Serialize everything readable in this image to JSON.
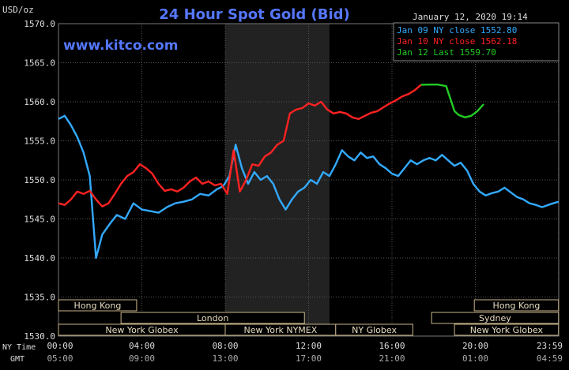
{
  "chart_data": {
    "type": "line",
    "title": "24 Hour Spot Gold (Bid)",
    "ylabel": "USD/oz",
    "timestamp": "January 12, 2020 19:14",
    "watermark": "www.kitco.com",
    "ylim": [
      1530,
      1570
    ],
    "y_ticks": [
      "1570.0",
      "1565.0",
      "1560.0",
      "1555.0",
      "1550.0",
      "1545.0",
      "1540.0",
      "1535.0",
      "1530.0"
    ],
    "grid": true,
    "legend_position": "top-right",
    "x_range": [
      0,
      24
    ],
    "x_ticks_ny": [
      "00:00",
      "04:00",
      "08:00",
      "12:00",
      "16:00",
      "20:00",
      "23:59"
    ],
    "x_ticks_gmt": [
      "05:00",
      "09:00",
      "13:00",
      "17:00",
      "21:00",
      "01:00",
      "04:59"
    ],
    "x_axis_label_ny": "NY Time",
    "x_axis_label_gmt": "GMT",
    "shaded_region_hours": [
      8.0,
      13.0
    ],
    "series": [
      {
        "name": "Jan 09 NY close 1552.80",
        "color": "#33aaff",
        "x": [
          0,
          0.3,
          0.6,
          0.9,
          1.2,
          1.5,
          1.8,
          2.1,
          2.5,
          2.8,
          3.2,
          3.6,
          4.0,
          4.4,
          4.8,
          5.2,
          5.6,
          6.0,
          6.4,
          6.8,
          7.2,
          7.6,
          7.9,
          8.2,
          8.5,
          8.8,
          9.1,
          9.4,
          9.7,
          10.0,
          10.3,
          10.6,
          10.9,
          11.2,
          11.5,
          11.8,
          12.1,
          12.4,
          12.7,
          13.0,
          13.3,
          13.6,
          13.9,
          14.2,
          14.5,
          14.8,
          15.1,
          15.4,
          15.7,
          16.0,
          16.3,
          16.6,
          16.9,
          17.2,
          17.5,
          17.8,
          18.1,
          18.4,
          18.7,
          19.0,
          19.3,
          19.6,
          19.9,
          20.2,
          20.5,
          20.8,
          21.1,
          21.4,
          21.7,
          22.0,
          22.3,
          22.6,
          22.9,
          23.2,
          23.5,
          23.99
        ],
        "values": [
          1557.8,
          1558.2,
          1557.0,
          1555.5,
          1553.5,
          1550.5,
          1540.0,
          1543.0,
          1544.5,
          1545.5,
          1545.0,
          1547.0,
          1546.2,
          1546.0,
          1545.8,
          1546.5,
          1547.0,
          1547.2,
          1547.5,
          1548.2,
          1548.0,
          1548.8,
          1549.2,
          1550.5,
          1554.5,
          1551.5,
          1549.5,
          1551.0,
          1550.0,
          1550.5,
          1549.5,
          1547.5,
          1546.2,
          1547.5,
          1548.5,
          1549.0,
          1550.0,
          1549.5,
          1551.0,
          1550.5,
          1552.0,
          1553.8,
          1553.0,
          1552.5,
          1553.5,
          1552.8,
          1553.0,
          1552.0,
          1551.5,
          1550.8,
          1550.5,
          1551.5,
          1552.5,
          1552.0,
          1552.5,
          1552.8,
          1552.5,
          1553.2,
          1552.5,
          1551.8,
          1552.2,
          1551.2,
          1549.5,
          1548.5,
          1548.0,
          1548.3,
          1548.5,
          1549.0,
          1548.4,
          1547.8,
          1547.5,
          1547.0,
          1546.8,
          1546.5,
          1546.8,
          1547.2
        ]
      },
      {
        "name": "Jan 10 NY close 1562.18",
        "color": "#ff2222",
        "x": [
          0,
          0.3,
          0.6,
          0.9,
          1.2,
          1.5,
          1.8,
          2.1,
          2.4,
          2.7,
          3.0,
          3.3,
          3.6,
          3.9,
          4.2,
          4.5,
          4.8,
          5.1,
          5.4,
          5.7,
          6.0,
          6.3,
          6.6,
          6.9,
          7.2,
          7.5,
          7.8,
          8.1,
          8.4,
          8.7,
          9.0,
          9.3,
          9.6,
          9.9,
          10.2,
          10.5,
          10.8,
          11.1,
          11.4,
          11.7,
          12.0,
          12.3,
          12.6,
          12.9,
          13.2,
          13.5,
          13.8,
          14.1,
          14.4,
          14.7,
          15.0,
          15.3,
          15.6,
          15.9,
          16.2,
          16.5,
          16.8,
          17.1,
          17.4
        ],
        "values": [
          1547.0,
          1546.8,
          1547.5,
          1548.5,
          1548.2,
          1548.6,
          1547.5,
          1546.6,
          1547.0,
          1548.2,
          1549.5,
          1550.5,
          1551.0,
          1552.0,
          1551.5,
          1550.8,
          1549.5,
          1548.6,
          1548.8,
          1548.5,
          1549.0,
          1549.8,
          1550.3,
          1549.5,
          1549.8,
          1549.3,
          1549.5,
          1548.2,
          1553.8,
          1548.5,
          1550.0,
          1552.0,
          1551.8,
          1553.0,
          1553.5,
          1554.5,
          1555.0,
          1558.5,
          1559.0,
          1559.2,
          1559.8,
          1559.5,
          1560.0,
          1559.0,
          1558.5,
          1558.7,
          1558.5,
          1558.0,
          1557.8,
          1558.2,
          1558.6,
          1558.8,
          1559.3,
          1559.8,
          1560.2,
          1560.7,
          1561.0,
          1561.5,
          1562.18
        ]
      },
      {
        "name": "Jan 12 Last 1559.70",
        "color": "#22cc22",
        "x": [
          17.4,
          17.8,
          18.2,
          18.6,
          19.0,
          19.2,
          19.5,
          19.8,
          20.1,
          20.4
        ],
        "values": [
          1562.18,
          1562.2,
          1562.2,
          1562.0,
          1558.8,
          1558.3,
          1558.0,
          1558.2,
          1558.8,
          1559.7
        ]
      }
    ],
    "sessions": [
      {
        "label": "Hong Kong",
        "row": 0,
        "start": 0.0,
        "end": 3.75
      },
      {
        "label": "London",
        "row": 1,
        "start": 3.0,
        "end": 11.8
      },
      {
        "label": "New York Globex",
        "row": 2,
        "start": 0.0,
        "end": 8.0
      },
      {
        "label": "New York NYMEX",
        "row": 2,
        "start": 8.0,
        "end": 13.3
      },
      {
        "label": "NY Globex",
        "row": 2,
        "start": 13.3,
        "end": 17.0
      },
      {
        "label": "Sydney",
        "row": 1,
        "start": 17.9,
        "end": 23.99
      },
      {
        "label": "Hong Kong",
        "row": 0,
        "start": 19.95,
        "end": 23.99
      },
      {
        "label": "New York Globex",
        "row": 2,
        "start": 19.0,
        "end": 23.99
      }
    ]
  }
}
